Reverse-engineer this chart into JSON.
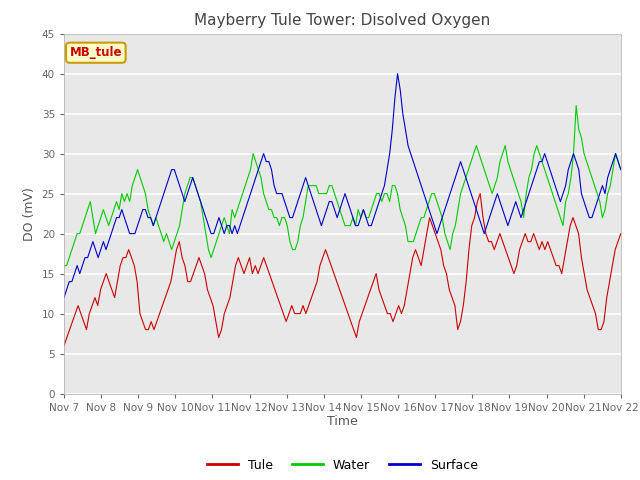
{
  "title": "Mayberry Tule Tower: Disolved Oxygen",
  "xlabel": "Time",
  "ylabel": "DO (mV)",
  "ylim": [
    0,
    45
  ],
  "yticks": [
    0,
    5,
    10,
    15,
    20,
    25,
    30,
    35,
    40,
    45
  ],
  "x_labels": [
    "Nov 7",
    "Nov 8",
    "Nov 9",
    "Nov 10",
    "Nov 11",
    "Nov 12",
    "Nov 13",
    "Nov 14",
    "Nov 15",
    "Nov 16",
    "Nov 17",
    "Nov 18",
    "Nov 19",
    "Nov 20",
    "Nov 21",
    "Nov 22"
  ],
  "tule_color": "#cc0000",
  "water_color": "#00cc00",
  "surface_color": "#0000cc",
  "bg_color": "#e8e8e8",
  "annotation_text": "MB_tule",
  "annotation_bg": "#ffffcc",
  "annotation_border": "#cc9900",
  "legend_labels": [
    "Tule",
    "Water",
    "Surface"
  ],
  "tule_values": [
    6,
    7,
    8,
    9,
    10,
    11,
    10,
    9,
    8,
    10,
    11,
    12,
    11,
    13,
    14,
    15,
    14,
    13,
    12,
    14,
    16,
    17,
    17,
    18,
    17,
    16,
    14,
    10,
    9,
    8,
    8,
    9,
    8,
    9,
    10,
    11,
    12,
    13,
    14,
    16,
    18,
    19,
    17,
    16,
    14,
    14,
    15,
    16,
    17,
    16,
    15,
    13,
    12,
    11,
    9,
    7,
    8,
    10,
    11,
    12,
    14,
    16,
    17,
    16,
    15,
    16,
    17,
    15,
    16,
    15,
    16,
    17,
    16,
    15,
    14,
    13,
    12,
    11,
    10,
    9,
    10,
    11,
    10,
    10,
    10,
    11,
    10,
    11,
    12,
    13,
    14,
    16,
    17,
    18,
    17,
    16,
    15,
    14,
    13,
    12,
    11,
    10,
    9,
    8,
    7,
    9,
    10,
    11,
    12,
    13,
    14,
    15,
    13,
    12,
    11,
    10,
    10,
    9,
    10,
    11,
    10,
    11,
    13,
    15,
    17,
    18,
    17,
    16,
    18,
    20,
    22,
    21,
    20,
    19,
    18,
    16,
    15,
    13,
    12,
    11,
    8,
    9,
    11,
    14,
    18,
    21,
    22,
    24,
    25,
    22,
    20,
    19,
    19,
    18,
    19,
    20,
    19,
    18,
    17,
    16,
    15,
    16,
    18,
    19,
    20,
    19,
    19,
    20,
    19,
    18,
    19,
    18,
    19,
    18,
    17,
    16,
    16,
    15,
    17,
    19,
    21,
    22,
    21,
    20,
    17,
    15,
    13,
    12,
    11,
    10,
    8,
    8,
    9,
    12,
    14,
    16,
    18,
    19,
    20
  ],
  "water_values": [
    16,
    16,
    17,
    18,
    19,
    20,
    20,
    21,
    22,
    23,
    24,
    22,
    20,
    21,
    22,
    23,
    22,
    21,
    22,
    23,
    24,
    23,
    25,
    24,
    25,
    24,
    26,
    27,
    28,
    27,
    26,
    25,
    23,
    22,
    21,
    22,
    21,
    20,
    19,
    20,
    19,
    18,
    19,
    20,
    21,
    23,
    25,
    26,
    27,
    27,
    26,
    25,
    24,
    22,
    20,
    18,
    17,
    18,
    19,
    20,
    21,
    22,
    21,
    20,
    23,
    22,
    23,
    24,
    25,
    26,
    27,
    28,
    30,
    29,
    28,
    27,
    25,
    24,
    23,
    23,
    22,
    22,
    21,
    22,
    22,
    21,
    19,
    18,
    18,
    19,
    21,
    22,
    24,
    26,
    26,
    26,
    26,
    25,
    25,
    25,
    25,
    26,
    26,
    25,
    24,
    23,
    22,
    21,
    21,
    21,
    22,
    21,
    23,
    22,
    23,
    22,
    22,
    23,
    24,
    25,
    25,
    24,
    25,
    25,
    24,
    26,
    26,
    25,
    23,
    22,
    21,
    19,
    19,
    19,
    20,
    21,
    22,
    22,
    23,
    24,
    25,
    25,
    24,
    23,
    22,
    20,
    19,
    18,
    20,
    21,
    23,
    25,
    26,
    27,
    28,
    29,
    30,
    31,
    30,
    29,
    28,
    27,
    26,
    25,
    26,
    27,
    29,
    30,
    31,
    29,
    28,
    27,
    26,
    25,
    24,
    22,
    25,
    27,
    28,
    30,
    31,
    30,
    29,
    28,
    27,
    26,
    25,
    24,
    23,
    22,
    21,
    24,
    25,
    27,
    30,
    36,
    33,
    32,
    30,
    29,
    28,
    27,
    26,
    25,
    24,
    22,
    23,
    25,
    26,
    28,
    30,
    29,
    28
  ],
  "surface_values": [
    12,
    13,
    14,
    14,
    15,
    16,
    15,
    16,
    17,
    17,
    18,
    19,
    18,
    17,
    18,
    19,
    18,
    19,
    20,
    21,
    22,
    22,
    23,
    22,
    21,
    20,
    20,
    20,
    21,
    22,
    23,
    23,
    22,
    22,
    21,
    22,
    23,
    24,
    25,
    26,
    27,
    28,
    28,
    27,
    26,
    25,
    24,
    25,
    26,
    27,
    26,
    25,
    24,
    23,
    22,
    21,
    20,
    20,
    21,
    22,
    21,
    20,
    21,
    21,
    20,
    21,
    20,
    21,
    22,
    23,
    24,
    25,
    26,
    27,
    28,
    29,
    30,
    29,
    29,
    28,
    26,
    25,
    25,
    25,
    24,
    23,
    22,
    22,
    23,
    24,
    25,
    26,
    27,
    26,
    25,
    24,
    23,
    22,
    21,
    22,
    23,
    24,
    24,
    23,
    22,
    23,
    24,
    25,
    24,
    23,
    22,
    21,
    21,
    22,
    23,
    22,
    21,
    21,
    22,
    23,
    24,
    25,
    26,
    28,
    30,
    33,
    37,
    40,
    38,
    35,
    33,
    31,
    30,
    29,
    28,
    27,
    26,
    25,
    24,
    23,
    22,
    21,
    20,
    21,
    22,
    23,
    24,
    25,
    26,
    27,
    28,
    29,
    28,
    27,
    26,
    25,
    24,
    23,
    22,
    21,
    20,
    21,
    22,
    23,
    24,
    25,
    24,
    23,
    22,
    21,
    22,
    23,
    24,
    23,
    22,
    23,
    24,
    25,
    26,
    27,
    28,
    29,
    29,
    30,
    29,
    28,
    27,
    26,
    25,
    24,
    25,
    26,
    28,
    29,
    30,
    29,
    28,
    25,
    24,
    23,
    22,
    22,
    23,
    24,
    25,
    26,
    25,
    27,
    28,
    29,
    30,
    29,
    28
  ]
}
